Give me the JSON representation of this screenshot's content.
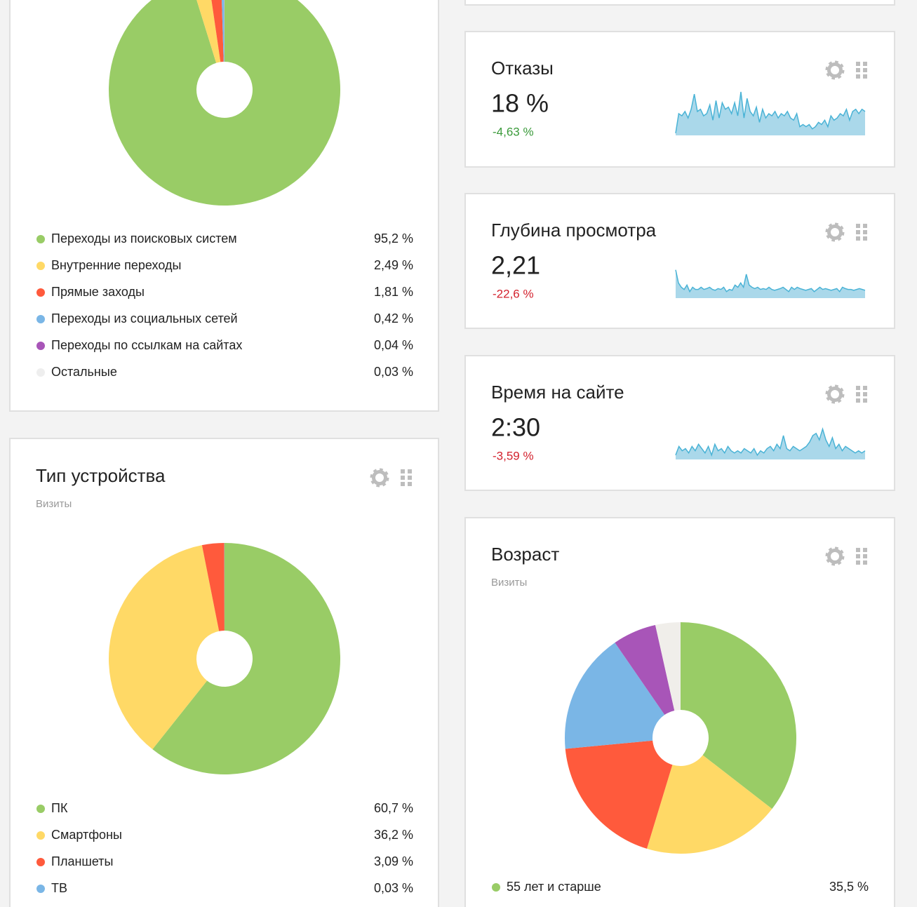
{
  "chart_data": [
    {
      "type": "pie",
      "categories": [
        "Переходы из поисковых систем",
        "Внутренние переходы",
        "Прямые заходы",
        "Переходы из социальных сетей",
        "Переходы по ссылкам на сайтах",
        "Остальные"
      ],
      "values": [
        95.2,
        2.49,
        1.81,
        0.42,
        0.04,
        0.03
      ],
      "value_labels": [
        "95,2 %",
        "2,49 %",
        "1,81 %",
        "0,42 %",
        "0,04 %",
        "0,03 %"
      ],
      "colors": [
        "#99cc66",
        "#ffd966",
        "#ff5a3c",
        "#7ab6e6",
        "#a855b8",
        "#eeeeee"
      ]
    },
    {
      "type": "pie",
      "title": "Тип устройства",
      "subtitle": "Визиты",
      "categories": [
        "ПК",
        "Смартфоны",
        "Планшеты",
        "ТВ"
      ],
      "values": [
        60.7,
        36.2,
        3.09,
        0.03
      ],
      "value_labels": [
        "60,7 %",
        "36,2 %",
        "3,09 %",
        "0,03 %"
      ],
      "colors": [
        "#99cc66",
        "#ffd966",
        "#ff5a3c",
        "#7ab6e6"
      ]
    },
    {
      "type": "pie",
      "title": "Возраст",
      "subtitle": "Визиты",
      "categories": [
        "55 лет и старше",
        null,
        null,
        null,
        null,
        null
      ],
      "values": [
        35.5,
        19.2,
        18.8,
        16.9,
        6.1,
        3.5
      ],
      "value_labels": [
        "35,5 %",
        null,
        null,
        null,
        null,
        null
      ],
      "colors": [
        "#99cc66",
        "#ffd966",
        "#ff5a3c",
        "#7ab6e6",
        "#a855b8",
        "#f0eeea"
      ]
    },
    {
      "type": "sparkline",
      "title": "Отказы",
      "headline": "18 %",
      "change": "-4,63 %",
      "change_color": "#3a9a3a",
      "color": "#aad8ea",
      "line_color": "#4ab3d6",
      "ylim": [
        0,
        100
      ],
      "values": [
        5,
        50,
        45,
        55,
        40,
        60,
        95,
        55,
        60,
        45,
        50,
        70,
        35,
        80,
        40,
        75,
        60,
        65,
        50,
        75,
        45,
        100,
        40,
        85,
        55,
        45,
        65,
        30,
        60,
        40,
        50,
        45,
        55,
        40,
        50,
        45,
        55,
        40,
        35,
        50,
        20,
        25,
        20,
        25,
        15,
        20,
        30,
        25,
        35,
        20,
        45,
        35,
        40,
        50,
        45,
        60,
        35,
        55,
        60,
        50,
        60,
        55
      ]
    },
    {
      "type": "sparkline",
      "title": "Глубина просмотра",
      "headline": "2,21",
      "change": "-22,6 %",
      "change_color": "#d3222e",
      "color": "#aad8ea",
      "line_color": "#4ab3d6",
      "ylim": [
        0,
        100
      ],
      "values": [
        65,
        35,
        25,
        20,
        30,
        15,
        25,
        20,
        20,
        25,
        20,
        22,
        25,
        20,
        18,
        22,
        20,
        25,
        15,
        20,
        18,
        30,
        25,
        35,
        25,
        55,
        30,
        25,
        22,
        25,
        20,
        22,
        20,
        25,
        20,
        18,
        20,
        22,
        25,
        20,
        15,
        25,
        20,
        25,
        22,
        20,
        18,
        20,
        22,
        15,
        20,
        25,
        20,
        22,
        20,
        18,
        20,
        22,
        15,
        25,
        22,
        20,
        20,
        18,
        20,
        22,
        20,
        18
      ]
    },
    {
      "type": "sparkline",
      "title": "Время на сайте",
      "headline": "2:30",
      "change": "-3,59 %",
      "change_color": "#d3222e",
      "color": "#aad8ea",
      "line_color": "#4ab3d6",
      "ylim": [
        0,
        100
      ],
      "values": [
        10,
        30,
        20,
        25,
        15,
        30,
        20,
        35,
        25,
        15,
        30,
        10,
        35,
        20,
        25,
        15,
        30,
        20,
        15,
        20,
        15,
        25,
        20,
        15,
        25,
        10,
        20,
        15,
        25,
        30,
        20,
        35,
        25,
        55,
        25,
        20,
        30,
        25,
        20,
        25,
        30,
        40,
        55,
        60,
        45,
        70,
        45,
        30,
        50,
        25,
        35,
        20,
        30,
        25,
        20,
        15,
        20,
        15,
        20
      ]
    }
  ]
}
